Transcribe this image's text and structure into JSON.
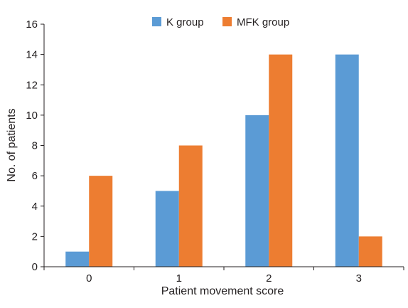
{
  "chart_data": {
    "type": "bar",
    "title": "",
    "xlabel": "Patient movement score",
    "ylabel": "No. of patients",
    "categories": [
      "0",
      "1",
      "2",
      "3"
    ],
    "series": [
      {
        "name": "K group",
        "values": [
          1,
          5,
          10,
          14
        ],
        "color": "#5b9bd5"
      },
      {
        "name": "MFK group",
        "values": [
          6,
          8,
          14,
          2
        ],
        "color": "#ed7d31"
      }
    ],
    "ylim": [
      0,
      16
    ],
    "yticks": [
      "0",
      "2",
      "4",
      "6",
      "8",
      "10",
      "12",
      "14",
      "16"
    ],
    "grid": false,
    "legend_position": "top"
  }
}
